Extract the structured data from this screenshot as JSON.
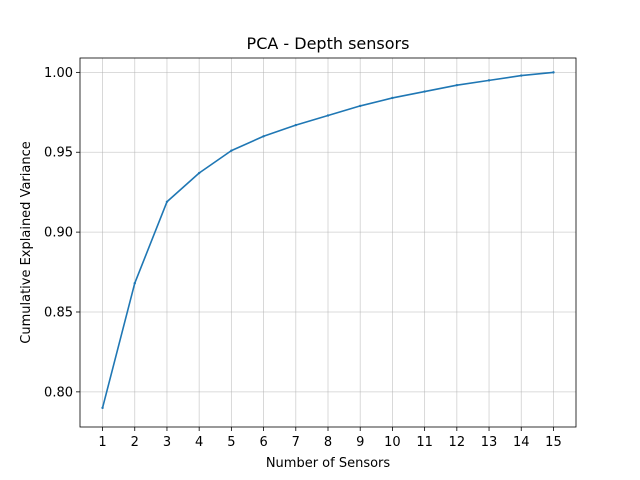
{
  "chart_data": {
    "type": "line",
    "title": "PCA - Depth sensors",
    "xlabel": "Number of Sensors",
    "ylabel": "Cumulative Explained Variance",
    "x": [
      1,
      2,
      3,
      4,
      5,
      6,
      7,
      8,
      9,
      10,
      11,
      12,
      13,
      14,
      15
    ],
    "series": [
      {
        "values": [
          0.79,
          0.868,
          0.919,
          0.937,
          0.951,
          0.96,
          0.967,
          0.973,
          0.979,
          0.984,
          0.988,
          0.992,
          0.995,
          0.998,
          1.0
        ],
        "color": "#1f77b4"
      }
    ],
    "xlim": [
      0.3,
      15.7
    ],
    "ylim": [
      0.778,
      1.009
    ],
    "xticks": [
      1,
      2,
      3,
      4,
      5,
      6,
      7,
      8,
      9,
      10,
      11,
      12,
      13,
      14,
      15
    ],
    "yticks": [
      0.8,
      0.85,
      0.9,
      0.95,
      1.0
    ],
    "ytick_labels": [
      "0.80",
      "0.85",
      "0.90",
      "0.95",
      "1.00"
    ],
    "grid": true
  }
}
